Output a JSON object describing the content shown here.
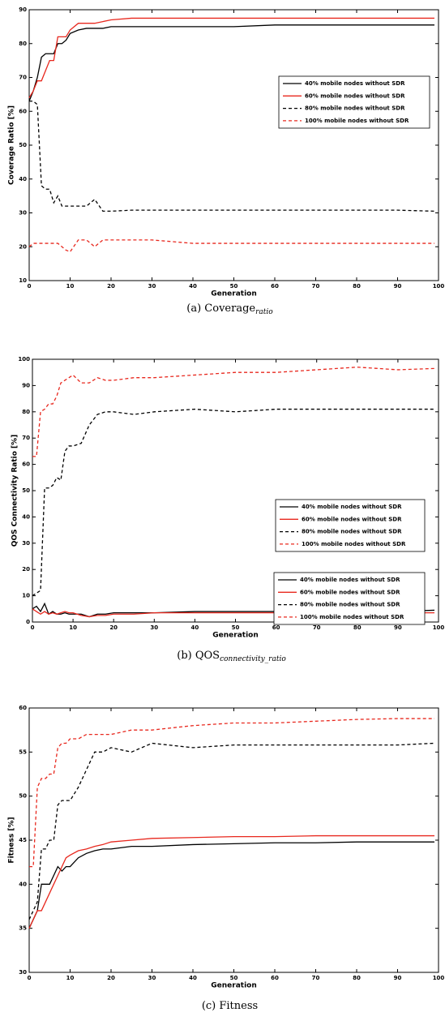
{
  "chart_data": [
    {
      "type": "line",
      "xlabel": "Generation",
      "ylabel": "Coverage Ratio [%]",
      "caption": {
        "text": "(a) Coverage",
        "sub": "ratio"
      },
      "xlim": [
        0,
        100
      ],
      "xticks": [
        0,
        10,
        20,
        30,
        40,
        50,
        60,
        70,
        80,
        90,
        100
      ],
      "ylim": [
        10,
        90
      ],
      "yticks": [
        10,
        20,
        30,
        40,
        50,
        60,
        70,
        80,
        90
      ],
      "x": [
        0,
        1,
        2,
        3,
        4,
        5,
        6,
        7,
        8,
        9,
        10,
        12,
        14,
        16,
        18,
        20,
        25,
        30,
        40,
        50,
        60,
        70,
        80,
        90,
        99
      ],
      "series": [
        {
          "name": "40% mobile nodes without SDR",
          "color": "#000000",
          "style": "solid",
          "values": [
            63,
            66,
            70,
            76,
            77,
            77,
            77,
            80,
            80,
            81,
            83,
            84,
            84.5,
            84.5,
            84.5,
            85,
            85,
            85,
            85,
            85,
            85.5,
            85.5,
            85.5,
            85.5,
            85.5
          ]
        },
        {
          "name": "60% mobile nodes without SDR",
          "color": "#e8281e",
          "style": "solid",
          "values": [
            64,
            66,
            69,
            69,
            72,
            75,
            75,
            82,
            82,
            82,
            84,
            86,
            86,
            86,
            86.5,
            87,
            87.5,
            87.5,
            87.5,
            87.5,
            87.5,
            87.5,
            87.5,
            87.5,
            87.5
          ]
        },
        {
          "name": "80% mobile nodes without SDR",
          "color": "#000000",
          "style": "dashed",
          "values": [
            63,
            63,
            62,
            38,
            37,
            37,
            33,
            35,
            32,
            32,
            32,
            32,
            32,
            34,
            30.5,
            30.5,
            30.8,
            30.8,
            30.8,
            30.8,
            30.8,
            30.8,
            30.8,
            30.8,
            30.5
          ]
        },
        {
          "name": "100% mobile nodes without SDR",
          "color": "#e8281e",
          "style": "dashed",
          "values": [
            20,
            21,
            21,
            21,
            21,
            21,
            21,
            21,
            20,
            19,
            18.5,
            22,
            22,
            20,
            22,
            22,
            22,
            22,
            21,
            21,
            21,
            21,
            21,
            21,
            21
          ]
        }
      ]
    },
    {
      "type": "line",
      "xlabel": "Generation",
      "ylabel": "QOS Connectivity Ratio [%]",
      "caption": {
        "text": "(b) QOS",
        "sub": "connectivity_ratio"
      },
      "xlim": [
        0,
        100
      ],
      "xticks": [
        0,
        10,
        20,
        30,
        40,
        50,
        60,
        70,
        80,
        90,
        100
      ],
      "ylim": [
        0,
        100
      ],
      "yticks": [
        0,
        10,
        20,
        30,
        40,
        50,
        60,
        70,
        80,
        90,
        100
      ],
      "x": [
        0,
        1,
        2,
        3,
        4,
        5,
        6,
        7,
        8,
        9,
        10,
        12,
        14,
        16,
        18,
        20,
        25,
        30,
        40,
        50,
        60,
        70,
        80,
        90,
        99
      ],
      "series": [
        {
          "name": "40% mobile nodes without SDR",
          "color": "#000000",
          "style": "solid",
          "values": [
            5,
            6,
            4,
            7,
            3,
            4,
            3,
            3,
            3.5,
            3,
            3,
            3,
            2,
            3,
            3,
            3.5,
            3.5,
            3.5,
            4,
            4,
            4,
            4,
            4,
            4,
            4.5
          ]
        },
        {
          "name": "60% mobile nodes without SDR",
          "color": "#e8281e",
          "style": "solid",
          "values": [
            5,
            4,
            3,
            4,
            3,
            3.5,
            3,
            3.5,
            4,
            3.5,
            3.5,
            2.5,
            2,
            2.5,
            2.5,
            3,
            3,
            3.5,
            3.5,
            3.5,
            3.5,
            3.5,
            3.5,
            3.5,
            3.5
          ]
        },
        {
          "name": "80% mobile nodes without SDR",
          "color": "#000000",
          "style": "dashed",
          "values": [
            10,
            11,
            12,
            51,
            51,
            52,
            55,
            54,
            65,
            67,
            67,
            68,
            75,
            79,
            80,
            80,
            79,
            80,
            81,
            80,
            81,
            81,
            81,
            81,
            81
          ]
        },
        {
          "name": "100% mobile nodes without SDR",
          "color": "#e8281e",
          "style": "dashed",
          "values": [
            63,
            63,
            80,
            81,
            83,
            83,
            86,
            91,
            92,
            93,
            94,
            91,
            91,
            93,
            92,
            92,
            93,
            93,
            94,
            95,
            95,
            96,
            97,
            96,
            96.5
          ]
        }
      ]
    },
    {
      "type": "line",
      "xlabel": "Generation",
      "ylabel": "Fitness [%]",
      "caption": {
        "text": "(c) Fitness",
        "sub": ""
      },
      "xlim": [
        0,
        100
      ],
      "xticks": [
        0,
        10,
        20,
        30,
        40,
        50,
        60,
        70,
        80,
        90,
        100
      ],
      "ylim": [
        30,
        60
      ],
      "yticks": [
        30,
        35,
        40,
        45,
        50,
        55,
        60
      ],
      "x": [
        0,
        1,
        2,
        3,
        4,
        5,
        6,
        7,
        8,
        9,
        10,
        12,
        14,
        16,
        18,
        20,
        25,
        30,
        40,
        50,
        60,
        70,
        80,
        90,
        99
      ],
      "series": [
        {
          "name": "40% mobile nodes without SDR",
          "color": "#000000",
          "style": "solid",
          "values": [
            35,
            36,
            37,
            40,
            40,
            40,
            41,
            42,
            41.5,
            42,
            42,
            43,
            43.5,
            43.8,
            44,
            44,
            44.3,
            44.3,
            44.5,
            44.6,
            44.7,
            44.7,
            44.8,
            44.8,
            44.8
          ]
        },
        {
          "name": "60% mobile nodes without SDR",
          "color": "#e8281e",
          "style": "solid",
          "values": [
            35,
            36,
            37,
            37,
            38,
            39,
            40,
            41,
            42,
            43,
            43.3,
            43.8,
            44,
            44.3,
            44.5,
            44.8,
            45,
            45.2,
            45.3,
            45.4,
            45.4,
            45.5,
            45.5,
            45.5,
            45.5
          ]
        },
        {
          "name": "80% mobile nodes without SDR",
          "color": "#000000",
          "style": "dashed",
          "values": [
            36,
            37,
            38,
            44,
            44,
            45,
            45,
            49,
            49.5,
            49.5,
            49.5,
            51,
            53,
            55,
            55,
            55.5,
            55,
            56,
            55.5,
            55.8,
            55.8,
            55.8,
            55.8,
            55.8,
            56
          ]
        },
        {
          "name": "100% mobile nodes without SDR",
          "color": "#e8281e",
          "style": "dashed",
          "values": [
            42,
            42,
            51,
            52,
            52,
            52.5,
            52.5,
            55.5,
            56,
            56,
            56.5,
            56.5,
            57,
            57,
            57,
            57,
            57.5,
            57.5,
            58,
            58.3,
            58.3,
            58.5,
            58.7,
            58.8,
            58.8
          ]
        }
      ]
    }
  ]
}
